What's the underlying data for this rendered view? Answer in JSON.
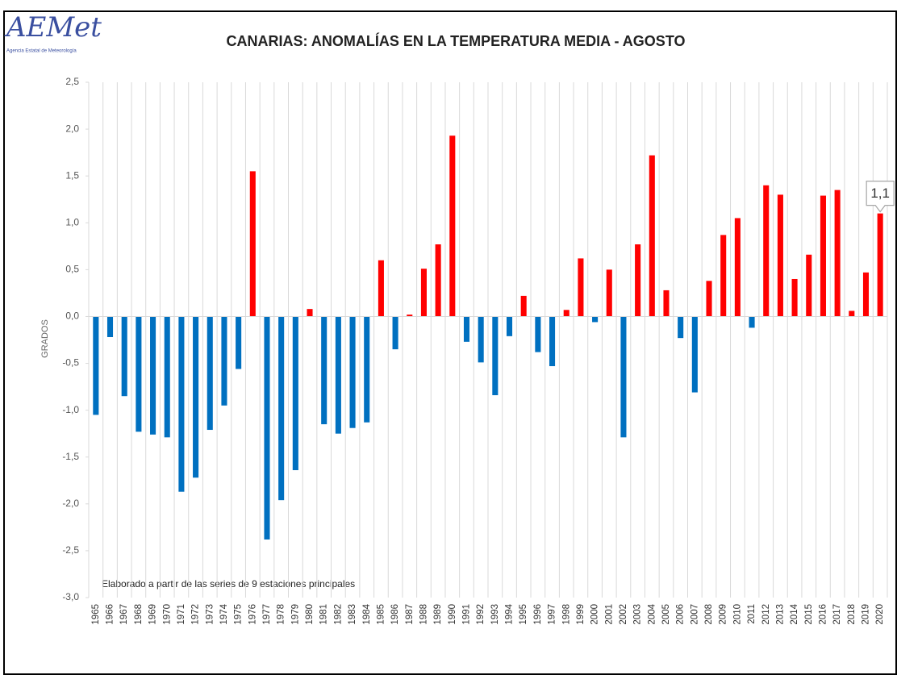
{
  "logo": {
    "text": "AEMet",
    "subtitle": "Agencia Estatal de Meteorología"
  },
  "chart_data": {
    "type": "bar",
    "title": "CANARIAS: ANOMALÍAS EN LA TEMPERATURA MEDIA - AGOSTO",
    "y_label": "GRADOS",
    "note": "Elaborado a partir de las series de 9 estaciones principales",
    "categories": [
      "1965",
      "1966",
      "1967",
      "1968",
      "1969",
      "1970",
      "1971",
      "1972",
      "1973",
      "1974",
      "1975",
      "1976",
      "1977",
      "1978",
      "1979",
      "1980",
      "1981",
      "1982",
      "1983",
      "1984",
      "1985",
      "1986",
      "1987",
      "1988",
      "1989",
      "1990",
      "1991",
      "1992",
      "1993",
      "1994",
      "1995",
      "1996",
      "1997",
      "1998",
      "1999",
      "2000",
      "2001",
      "2002",
      "2003",
      "2004",
      "2005",
      "2006",
      "2007",
      "2008",
      "2009",
      "2010",
      "2011",
      "2012",
      "2013",
      "2014",
      "2015",
      "2016",
      "2017",
      "2018",
      "2019",
      "2020"
    ],
    "values": [
      -1.05,
      -0.22,
      -0.85,
      -1.23,
      -1.26,
      -1.29,
      -1.87,
      -1.72,
      -1.21,
      -0.95,
      -0.56,
      1.55,
      -2.38,
      -1.96,
      -1.64,
      0.08,
      -1.15,
      -1.25,
      -1.19,
      -1.13,
      0.6,
      -0.35,
      0.02,
      0.51,
      0.77,
      1.93,
      -0.27,
      -0.49,
      -0.84,
      -0.21,
      0.22,
      -0.38,
      -0.53,
      0.07,
      0.62,
      -0.06,
      0.5,
      -1.29,
      0.77,
      1.72,
      0.28,
      -0.23,
      -0.81,
      0.38,
      0.87,
      1.05,
      -0.12,
      1.4,
      1.3,
      0.4,
      0.66,
      1.29,
      1.35,
      0.06,
      0.47,
      1.1
    ],
    "value_labels": [
      null,
      null,
      null,
      null,
      null,
      null,
      null,
      null,
      null,
      null,
      null,
      null,
      null,
      null,
      null,
      null,
      null,
      null,
      null,
      null,
      null,
      null,
      null,
      null,
      null,
      null,
      null,
      null,
      null,
      null,
      null,
      null,
      null,
      null,
      null,
      null,
      null,
      null,
      null,
      null,
      null,
      null,
      null,
      null,
      null,
      null,
      null,
      null,
      null,
      null,
      null,
      null,
      null,
      null,
      null,
      "1,1"
    ],
    "positive_color": "#ff0000",
    "negative_color": "#0070c0",
    "ylim": [
      -3,
      2.5
    ],
    "yticks": [
      {
        "value": -3,
        "label": "-3,0"
      },
      {
        "value": -2.5,
        "label": "-2,5"
      },
      {
        "value": -2,
        "label": "-2,0"
      },
      {
        "value": -1.5,
        "label": "-1,5"
      },
      {
        "value": -1,
        "label": "-1,0"
      },
      {
        "value": -0.5,
        "label": "-0,5"
      },
      {
        "value": 0,
        "label": "0,0"
      },
      {
        "value": 0.5,
        "label": "0,5"
      },
      {
        "value": 1,
        "label": "1,0"
      },
      {
        "value": 1.5,
        "label": "1,5"
      },
      {
        "value": 2,
        "label": "2,0"
      },
      {
        "value": 2.5,
        "label": "2,5"
      }
    ],
    "grid": "x"
  }
}
